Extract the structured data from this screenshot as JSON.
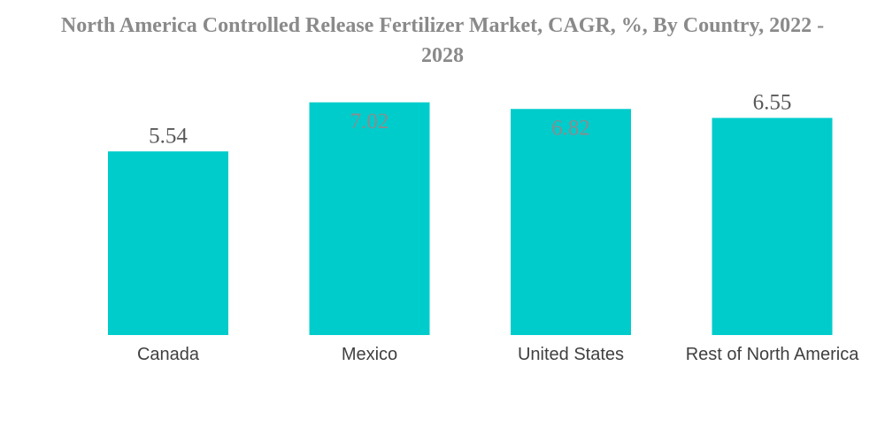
{
  "chart_data": {
    "type": "bar",
    "title": "North America Controlled Release Fertilizer Market, CAGR, %, By Country, 2022 - 2028",
    "categories": [
      "Canada",
      "Mexico",
      "United States",
      "Rest of North America"
    ],
    "values": [
      5.54,
      7.02,
      6.82,
      6.55
    ],
    "value_labels": [
      "5.54",
      "7.02",
      "6.82",
      "6.55"
    ],
    "xlabel": "",
    "ylabel": "",
    "ylim": [
      0,
      7.2
    ],
    "grid": false,
    "bar_color": "#00cccc"
  }
}
